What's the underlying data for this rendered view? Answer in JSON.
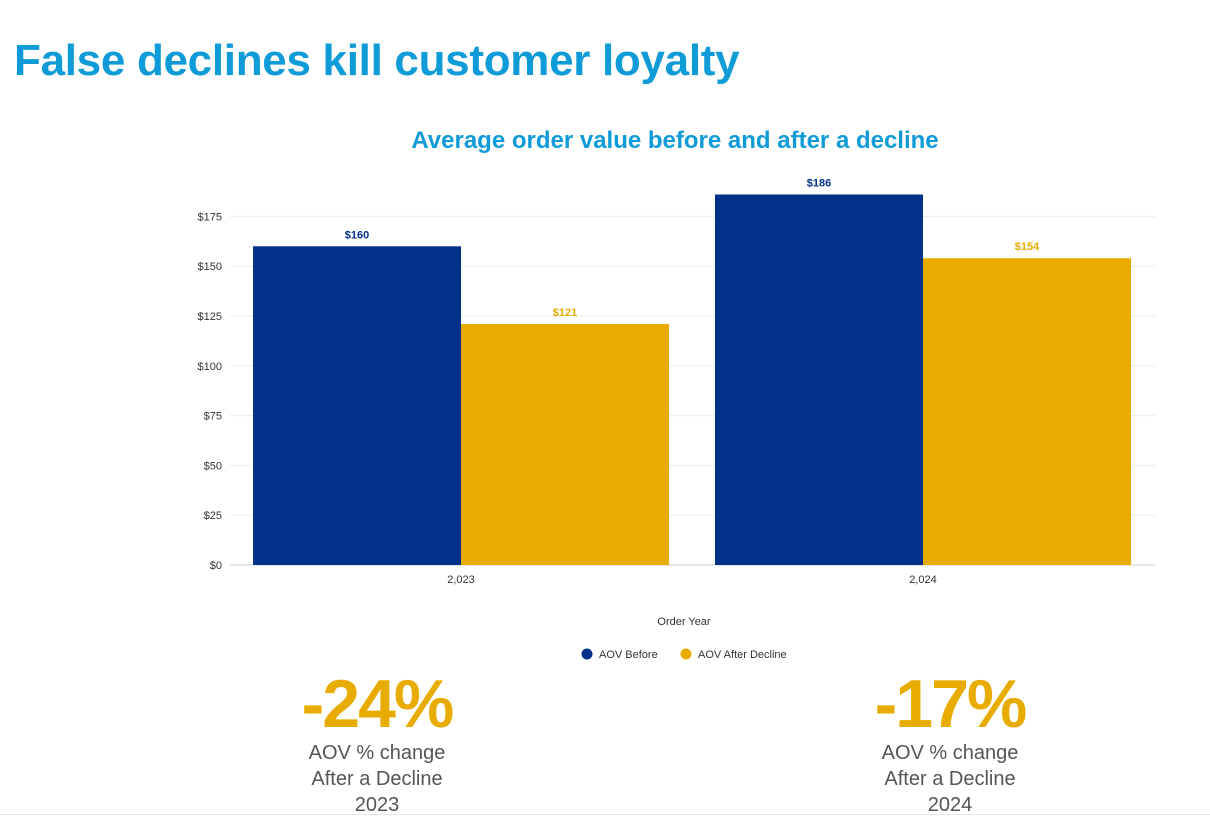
{
  "headline": "False declines kill customer loyalty",
  "colors": {
    "headline": "#0f9bd7",
    "aov_before": "#003087",
    "aov_after_decline": "#e8ab00",
    "stat": "#e8ab00"
  },
  "chart_data": {
    "type": "bar",
    "title": "Average order value before and after a decline",
    "xlabel": "Order Year",
    "ylabel": "",
    "categories": [
      "2,023",
      "2,024"
    ],
    "series": [
      {
        "name": "AOV Before",
        "values": [
          160,
          186
        ],
        "labels": [
          "$160",
          "$186"
        ],
        "color": "#003087"
      },
      {
        "name": "AOV After Decline",
        "values": [
          121,
          154
        ],
        "labels": [
          "$121",
          "$154"
        ],
        "color": "#e8ab00"
      }
    ],
    "ylim": [
      0,
      175
    ],
    "yticks": [
      0,
      25,
      50,
      75,
      100,
      125,
      150,
      175
    ],
    "ytick_labels": [
      "$0",
      "$25",
      "$50",
      "$75",
      "$100",
      "$125",
      "$150",
      "$175"
    ],
    "grid": true,
    "legend_position": "bottom-center"
  },
  "stats": [
    {
      "value": "-24%",
      "line1": "AOV  % change",
      "line2": "After a Decline",
      "line3": "2023"
    },
    {
      "value": "-17%",
      "line1": "AOV % change",
      "line2": "After a Decline",
      "line3": "2024"
    }
  ]
}
